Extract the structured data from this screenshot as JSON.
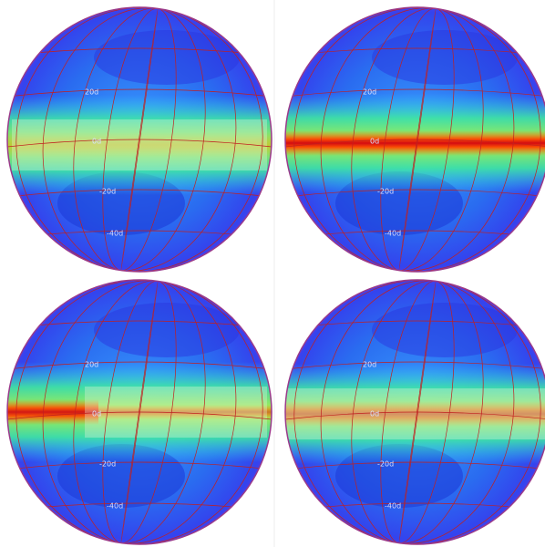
{
  "panels": [
    {
      "labels": [
        "20d",
        "0d",
        "-20d",
        "-40d"
      ]
    },
    {
      "labels": [
        "20d",
        "0d",
        "-20d",
        "-40d"
      ]
    },
    {
      "labels": [
        "20d",
        "0d",
        "-20d",
        "-40d"
      ]
    },
    {
      "labels": [
        "20d",
        "0d",
        "-20d",
        "-40d"
      ]
    }
  ]
}
